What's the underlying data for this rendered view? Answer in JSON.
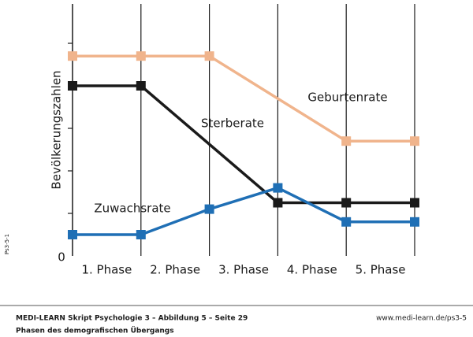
{
  "chart_data": {
    "type": "line",
    "y_label": "Bevölkerungszahlen",
    "categories": [
      "1. Phase",
      "2. Phase",
      "3. Phase",
      "4. Phase",
      "5. Phase"
    ],
    "xlim": [
      0,
      5
    ],
    "ylim": [
      0,
      6
    ],
    "yticks": [
      0
    ],
    "y_minor_ticks": [
      1,
      2,
      3,
      4,
      5
    ],
    "series": [
      {
        "name": "Geburtenrate",
        "color": "#f0b48c",
        "x": [
          0,
          1,
          2,
          4,
          5
        ],
        "values": [
          4.7,
          4.7,
          4.7,
          2.7,
          2.7
        ]
      },
      {
        "name": "Sterberate",
        "color": "#1a1a1a",
        "x": [
          0,
          1,
          3,
          4,
          5
        ],
        "values": [
          4.0,
          4.0,
          1.25,
          1.25,
          1.25
        ]
      },
      {
        "name": "Zuwachsrate",
        "color": "#1f6fb5",
        "x": [
          0,
          1,
          2,
          3,
          4,
          5
        ],
        "values": [
          0.5,
          0.5,
          1.1,
          1.6,
          0.8,
          0.8
        ]
      }
    ]
  },
  "side_code": "Ps3-5-1",
  "footer": {
    "source": "MEDI-LEARN Skript Psychologie 3 – Abbildung 5 – Seite 29",
    "url": "www.medi-learn.de/ps3-5",
    "caption": "Phasen des demografischen Übergangs"
  }
}
